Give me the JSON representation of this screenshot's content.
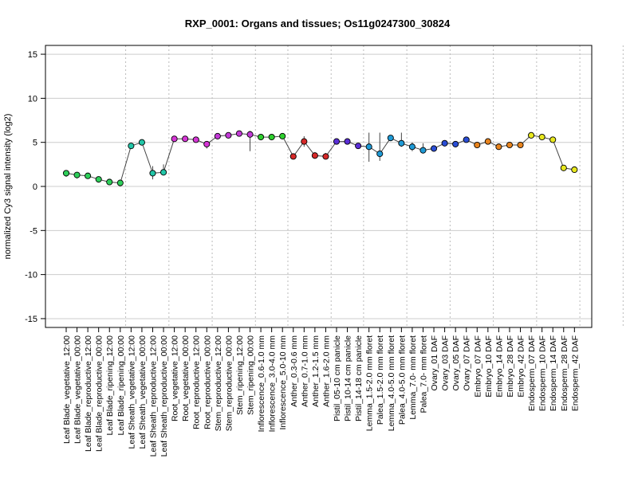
{
  "chart_data": {
    "type": "line",
    "title": "RXP_0001: Organs and tissues; Os11g0247300_30824",
    "xlabel": "",
    "ylabel": "normalized Cy3 signal intensity (log2)",
    "ylim": [
      -16,
      16
    ],
    "yticks": [
      -15,
      -10,
      -5,
      0,
      5,
      10,
      15
    ],
    "grid": "horizontal gridlines at y ticks; vertical dotted separators between tissue groups",
    "group_boundaries_after_index": [
      5,
      9,
      13,
      17,
      20,
      24,
      27,
      31,
      35,
      39,
      43,
      47,
      51
    ],
    "categories": [
      "Leaf Blade_vegetative_12:00",
      "Leaf Blade_vegetative_00:00",
      "Leaf Blade_reproductive_12:00",
      "Leaf Blade_reproductive_00:00",
      "Leaf Blade_ripening_12:00",
      "Leaf Blade_ripening_00:00",
      "Leaf Sheath_vegetative_12:00",
      "Leaf Sheath_vegetative_00:00",
      "Leaf Sheath_reproductive_12:00",
      "Leaf Sheath_reproductive_00:00",
      "Root_vegetative_12:00",
      "Root_vegetative_00:00",
      "Root_reproductive_12:00",
      "Root_reproductive_00:00",
      "Stem_reproductive_12:00",
      "Stem_reproductive_00:00",
      "Stem_ripening_12:00",
      "Stem_ripening_00:00",
      "Inflorescence_0.6-1.0 mm",
      "Inflorescence_3.0-4.0 mm",
      "Inflorescence_5.0-10 mm",
      "Anther_0.3-0.6 mm",
      "Anther_0.7-1.0 mm",
      "Anther_1.2-1.5 mm",
      "Anther_1.6-2.0 mm",
      "Pistil_05-10 cm panicle",
      "Pistil_10-14 cm panicle",
      "Pistil_14-18 cm panicle",
      "Lemma_1.5-2.0 mm floret",
      "Palea_1.5-2.0 mm floret",
      "Lemma_4.0-5.0 mm floret",
      "Palea_4.0-5.0 mm floret",
      "Lemma_7.0- mm floret",
      "Palea_7.0- mm floret",
      "Ovary_01 DAF",
      "Ovary_03 DAF",
      "Ovary_05 DAF",
      "Ovary_07 DAF",
      "Embryo_07 DAF",
      "Embryo_10 DAF",
      "Embryo_14 DAF",
      "Embryo_28 DAF",
      "Embryo_42 DAF",
      "Endosperm_07 DAF",
      "Endosperm_10 DAF",
      "Endosperm_14 DAF",
      "Endosperm_28 DAF",
      "Endosperm_42 DAF"
    ],
    "series": [
      {
        "values": [
          1.5,
          1.3,
          1.2,
          0.8,
          0.5,
          0.4,
          4.6,
          5.0,
          1.5,
          1.6,
          5.4,
          5.4,
          5.3,
          4.8,
          5.7,
          5.8,
          6.0,
          5.9,
          5.6,
          5.6,
          5.7,
          3.4,
          5.1,
          3.5,
          3.4,
          5.1,
          5.1,
          4.6,
          4.5,
          3.7,
          5.5,
          4.9,
          4.5,
          4.1,
          4.3,
          4.9,
          4.8,
          5.3,
          4.7,
          5.1,
          4.5,
          4.7,
          4.7,
          5.8,
          5.6,
          5.3,
          2.1,
          1.9
        ],
        "err_low": [
          1.1,
          0.9,
          0.9,
          0.5,
          0.2,
          0.0,
          4.5,
          4.8,
          0.8,
          1.4,
          5.2,
          5.3,
          5.0,
          4.3,
          5.4,
          5.6,
          5.9,
          4.0,
          5.5,
          5.5,
          5.5,
          3.2,
          4.5,
          3.2,
          3.1,
          4.9,
          4.8,
          4.4,
          2.8,
          2.9,
          5.3,
          4.5,
          4.0,
          3.9,
          4.1,
          4.8,
          4.7,
          5.1,
          4.6,
          5.0,
          4.3,
          4.6,
          4.5,
          5.7,
          5.3,
          5.2,
          1.9,
          1.8
        ],
        "err_high": [
          1.8,
          1.6,
          1.5,
          1.1,
          0.8,
          0.7,
          4.8,
          5.2,
          2.3,
          2.5,
          5.7,
          5.5,
          5.6,
          5.1,
          6.0,
          6.0,
          6.1,
          6.3,
          5.8,
          5.8,
          5.9,
          3.7,
          5.7,
          3.9,
          3.8,
          5.3,
          5.3,
          4.8,
          6.1,
          6.1,
          5.8,
          6.1,
          5.0,
          4.9,
          4.5,
          5.1,
          5.0,
          5.5,
          4.9,
          5.3,
          4.7,
          4.8,
          4.9,
          6.0,
          5.8,
          5.5,
          2.3,
          2.1
        ]
      }
    ],
    "point_colors": [
      "#2ecf5a",
      "#2ecf5a",
      "#2ecf5a",
      "#2ecf5a",
      "#2ecf5a",
      "#2ecf5a",
      "#22c6a8",
      "#22c6a8",
      "#22c6a8",
      "#22c6a8",
      "#d636d6",
      "#d636d6",
      "#d636d6",
      "#d636d6",
      "#c23ad6",
      "#c23ad6",
      "#c23ad6",
      "#c23ad6",
      "#2ecf2e",
      "#2ecf2e",
      "#2ecf2e",
      "#d62828",
      "#d62828",
      "#d62828",
      "#d62828",
      "#5a2ed6",
      "#5a2ed6",
      "#5a2ed6",
      "#1e9ad6",
      "#1e9ad6",
      "#1e9ad6",
      "#1e9ad6",
      "#1e9ad6",
      "#1e9ad6",
      "#2a4ed6",
      "#2a4ed6",
      "#2a4ed6",
      "#2a4ed6",
      "#e8841e",
      "#e8841e",
      "#e8841e",
      "#e8841e",
      "#e8841e",
      "#e8e81e",
      "#e8e81e",
      "#e8e81e",
      "#e8e81e",
      "#e8e81e"
    ],
    "line_color": "#444444"
  }
}
